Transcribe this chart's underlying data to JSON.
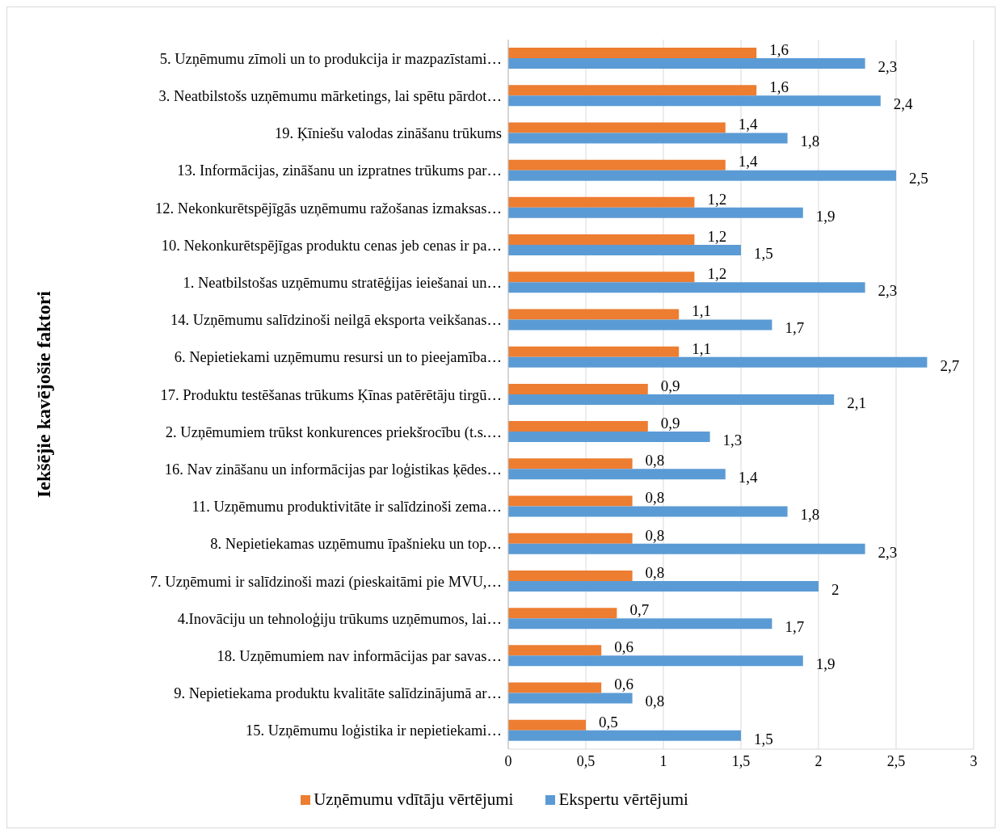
{
  "chart_data": {
    "type": "bar",
    "orientation": "horizontal",
    "ylabel": "Iekšējie kavējošie faktori",
    "categories": [
      "5. Uzņēmumu zīmoli un to produkcija ir mazpazīstami…",
      "3. Neatbilstošs uzņēmumu mārketings, lai spētu pārdot…",
      "19. Ķīniešu valodas zināšanu trūkums",
      "13. Informācijas, zināšanu un izpratnes trūkums par…",
      "12. Nekonkurētspējīgās uzņēmumu ražošanas izmaksas…",
      "10. Nekonkurētspējīgas produktu cenas jeb cenas ir pa…",
      "1. Neatbilstošas uzņēmumu stratēģijas ieiešanai un…",
      "14. Uzņēmumu salīdzinoši neilgā eksporta veikšanas…",
      "6. Nepietiekami uzņēmumu resursi un to pieejamība…",
      "17. Produktu testēšanas trūkums Ķīnas patērētāju tirgū…",
      "2. Uzņēmumiem trūkst konkurences priekšrocību (t.s.…",
      "16. Nav zināšanu un informācijas par loģistikas ķēdes…",
      "11. Uzņēmumu produktivitāte ir salīdzinoši zema…",
      "8. Nepietiekamas uzņēmumu īpašnieku un top…",
      "7. Uzņēmumi ir salīdzinoši mazi (pieskaitāmi pie MVU,…",
      "4.Inovāciju un tehnoloģiju trūkums uzņēmumos, lai…",
      "18. Uzņēmumiem nav informācijas par savas…",
      "9. Nepietiekama produktu kvalitāte salīdzinājumā ar…",
      "15. Uzņēmumu loģistika ir nepietiekami…"
    ],
    "series": [
      {
        "name": "Uzņēmumu vdītāju vērtējumi",
        "color": "#ed7d31",
        "values": [
          1.6,
          1.6,
          1.4,
          1.4,
          1.2,
          1.2,
          1.2,
          1.1,
          1.1,
          0.9,
          0.9,
          0.8,
          0.8,
          0.8,
          0.8,
          0.7,
          0.6,
          0.6,
          0.5
        ],
        "value_labels": [
          "1,6",
          "1,6",
          "1,4",
          "1,4",
          "1,2",
          "1,2",
          "1,2",
          "1,1",
          "1,1",
          "0,9",
          "0,9",
          "0,8",
          "0,8",
          "0,8",
          "0,8",
          "0,7",
          "0,6",
          "0,6",
          "0,5"
        ]
      },
      {
        "name": "Ekspertu vērtējumi",
        "color": "#5b9bd5",
        "values": [
          2.3,
          2.4,
          1.8,
          2.5,
          1.9,
          1.5,
          2.3,
          1.7,
          2.7,
          2.1,
          1.3,
          1.4,
          1.8,
          2.3,
          2,
          1.7,
          1.9,
          0.8,
          1.5
        ],
        "value_labels": [
          "2,3",
          "2,4",
          "1,8",
          "2,5",
          "1,9",
          "1,5",
          "2,3",
          "1,7",
          "2,7",
          "2,1",
          "1,3",
          "1,4",
          "1,8",
          "2,3",
          "2",
          "1,7",
          "1,9",
          "0,8",
          "1,5"
        ]
      }
    ],
    "xlim": [
      0,
      3
    ],
    "xticks": [
      0,
      {
        "value": 0.5,
        "label": "0,5"
      },
      1,
      {
        "value": 1.5,
        "label": "1,5"
      },
      2,
      {
        "value": 2.5,
        "label": "2,5"
      },
      3
    ],
    "grid": "x",
    "legend": "bottom"
  }
}
